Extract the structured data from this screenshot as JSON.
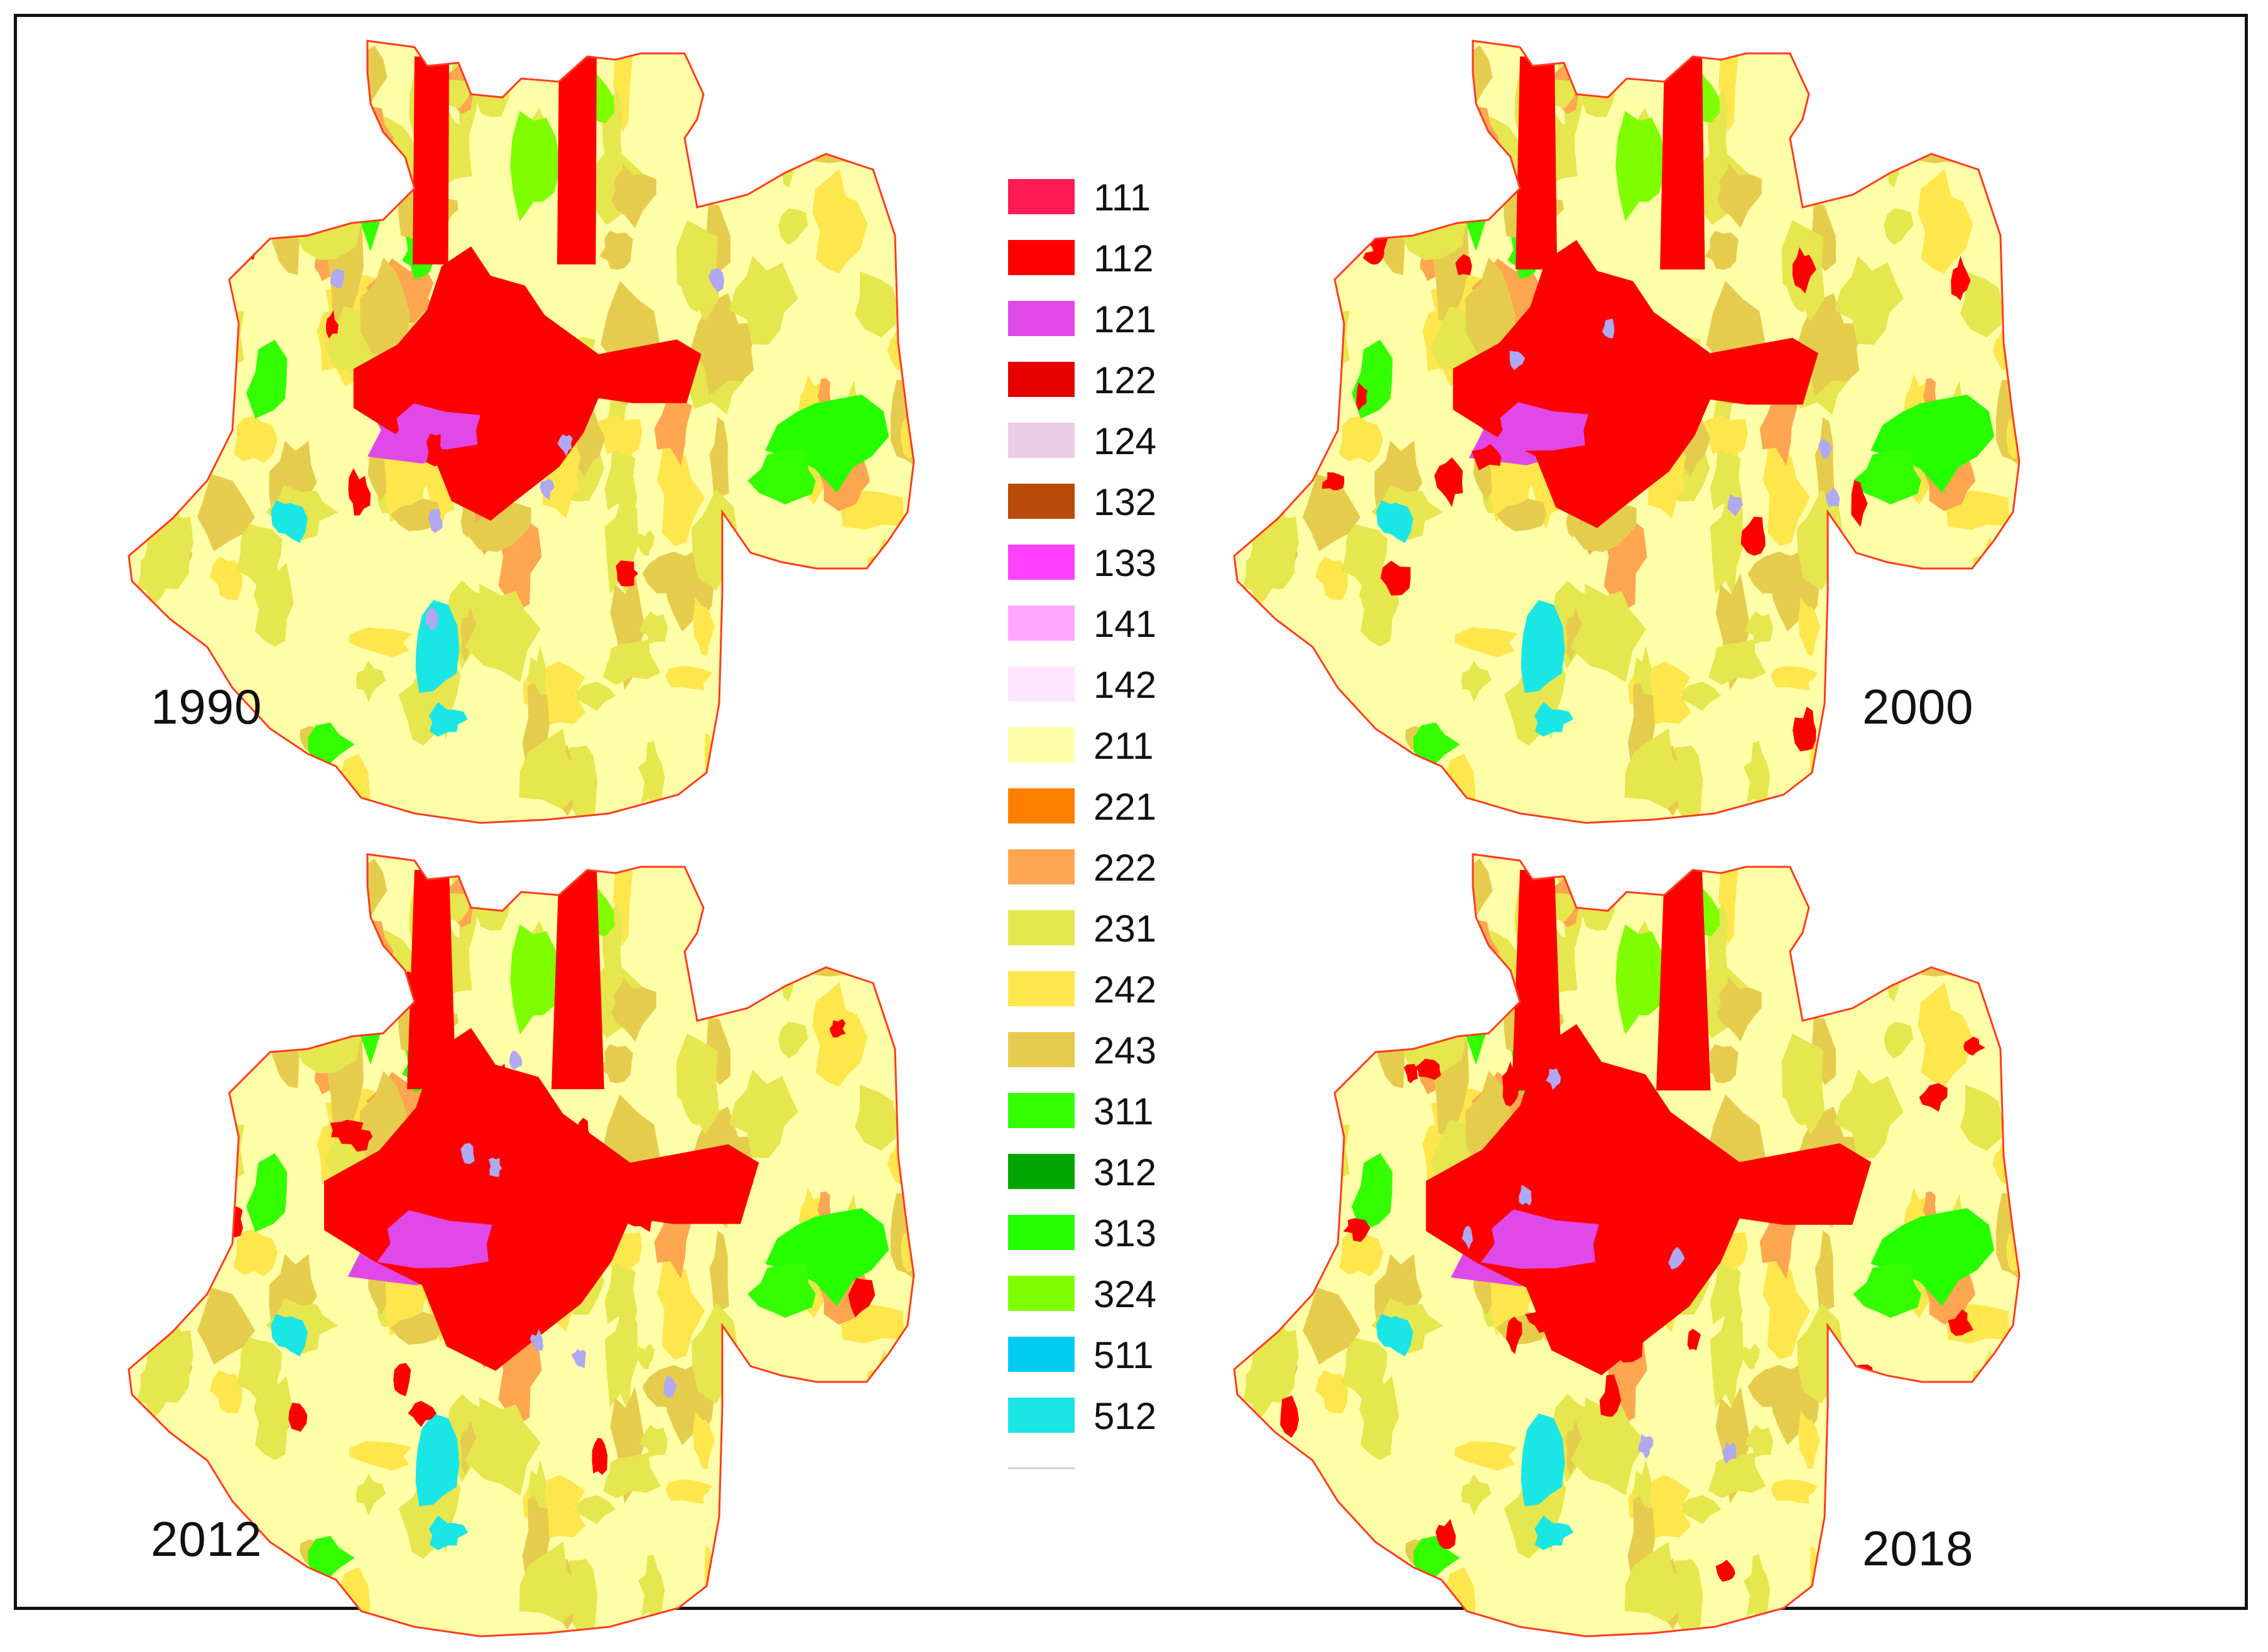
{
  "maps": [
    {
      "key": "m1990",
      "year": "1990"
    },
    {
      "key": "m2000",
      "year": "2000"
    },
    {
      "key": "m2012",
      "year": "2012"
    },
    {
      "key": "m2018",
      "year": "2018"
    }
  ],
  "legend": [
    {
      "code": "111",
      "color": "#ff1a55"
    },
    {
      "code": "112",
      "color": "#ff0000"
    },
    {
      "code": "121",
      "color": "#e048e8"
    },
    {
      "code": "122",
      "color": "#e60000"
    },
    {
      "code": "124",
      "color": "#eccbe6"
    },
    {
      "code": "132",
      "color": "#b84a0a"
    },
    {
      "code": "133",
      "color": "#ff40ff"
    },
    {
      "code": "141",
      "color": "#ffa6ff"
    },
    {
      "code": "142",
      "color": "#ffe6ff"
    },
    {
      "code": "211",
      "color": "#ffffa8"
    },
    {
      "code": "221",
      "color": "#ff8000"
    },
    {
      "code": "222",
      "color": "#ffa650"
    },
    {
      "code": "231",
      "color": "#e6e64e"
    },
    {
      "code": "242",
      "color": "#ffe64d"
    },
    {
      "code": "243",
      "color": "#e6cc4d"
    },
    {
      "code": "311",
      "color": "#33ff00"
    },
    {
      "code": "312",
      "color": "#00a600"
    },
    {
      "code": "313",
      "color": "#26ff00"
    },
    {
      "code": "324",
      "color": "#80ff00"
    },
    {
      "code": "511",
      "color": "#00ccf2"
    },
    {
      "code": "512",
      "color": "#1ae6e6"
    }
  ],
  "colors": {
    "background": "#ffffff",
    "frame": "#111111",
    "boundary": "#ff3b1f",
    "base_land": "#ffffa8"
  }
}
